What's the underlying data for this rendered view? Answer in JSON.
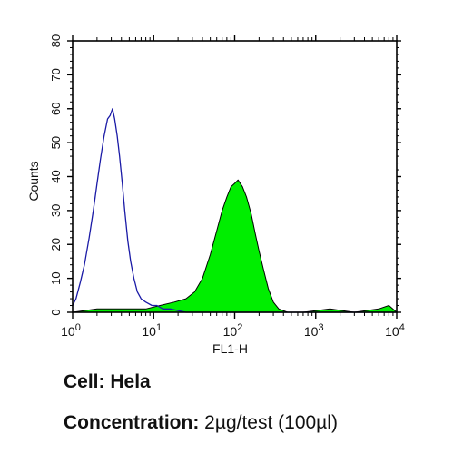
{
  "chart_data": {
    "type": "area",
    "xlabel": "FL1-H",
    "ylabel": "Counts",
    "xscale": "log",
    "xlim": [
      1,
      10000
    ],
    "ylim": [
      0,
      80
    ],
    "x_ticks": [
      {
        "base": "10",
        "exp": "0",
        "value": 1
      },
      {
        "base": "10",
        "exp": "1",
        "value": 10
      },
      {
        "base": "10",
        "exp": "2",
        "value": 100
      },
      {
        "base": "10",
        "exp": "3",
        "value": 1000
      },
      {
        "base": "10",
        "exp": "4",
        "value": 10000
      }
    ],
    "y_ticks": [
      "0",
      "10",
      "20",
      "30",
      "40",
      "50",
      "60",
      "70",
      "80"
    ],
    "grid": false,
    "series": [
      {
        "style": "outline",
        "color": "#1a1aa6",
        "points": [
          [
            1.0,
            2
          ],
          [
            1.1,
            4
          ],
          [
            1.25,
            9
          ],
          [
            1.4,
            14
          ],
          [
            1.6,
            22
          ],
          [
            1.8,
            30
          ],
          [
            2.0,
            38
          ],
          [
            2.2,
            45
          ],
          [
            2.45,
            52
          ],
          [
            2.7,
            57
          ],
          [
            2.9,
            58
          ],
          [
            3.1,
            60
          ],
          [
            3.3,
            57
          ],
          [
            3.55,
            52
          ],
          [
            3.8,
            46
          ],
          [
            4.1,
            38
          ],
          [
            4.4,
            30
          ],
          [
            4.8,
            21
          ],
          [
            5.2,
            15
          ],
          [
            5.7,
            10
          ],
          [
            6.3,
            6
          ],
          [
            7.0,
            4
          ],
          [
            8.0,
            3
          ],
          [
            9.5,
            2
          ],
          [
            11,
            2
          ],
          [
            13,
            1
          ],
          [
            16,
            1
          ],
          [
            25,
            0
          ],
          [
            60,
            0
          ],
          [
            200,
            0
          ],
          [
            1000,
            0
          ],
          [
            5000,
            0
          ],
          [
            10000,
            0
          ]
        ]
      },
      {
        "style": "filled",
        "color": "#00ee00",
        "points": [
          [
            1.0,
            0
          ],
          [
            2.0,
            1
          ],
          [
            4.0,
            1
          ],
          [
            8.0,
            1
          ],
          [
            12,
            2
          ],
          [
            18,
            3
          ],
          [
            25,
            4
          ],
          [
            32,
            6
          ],
          [
            40,
            10
          ],
          [
            50,
            17
          ],
          [
            60,
            24
          ],
          [
            70,
            30
          ],
          [
            80,
            34
          ],
          [
            90,
            37
          ],
          [
            100,
            38
          ],
          [
            110,
            39
          ],
          [
            125,
            37
          ],
          [
            140,
            34
          ],
          [
            160,
            29
          ],
          [
            180,
            23
          ],
          [
            200,
            18
          ],
          [
            230,
            12
          ],
          [
            260,
            7
          ],
          [
            300,
            3
          ],
          [
            350,
            1
          ],
          [
            450,
            0
          ],
          [
            700,
            0
          ],
          [
            1500,
            1
          ],
          [
            3000,
            0
          ],
          [
            6000,
            1
          ],
          [
            8000,
            2
          ],
          [
            10000,
            0
          ]
        ]
      }
    ]
  },
  "caption": {
    "cell_label": "Cell:",
    "cell_value": "Hela",
    "conc_label": "Concentration:",
    "conc_value": "2µg/test (100µl)"
  }
}
